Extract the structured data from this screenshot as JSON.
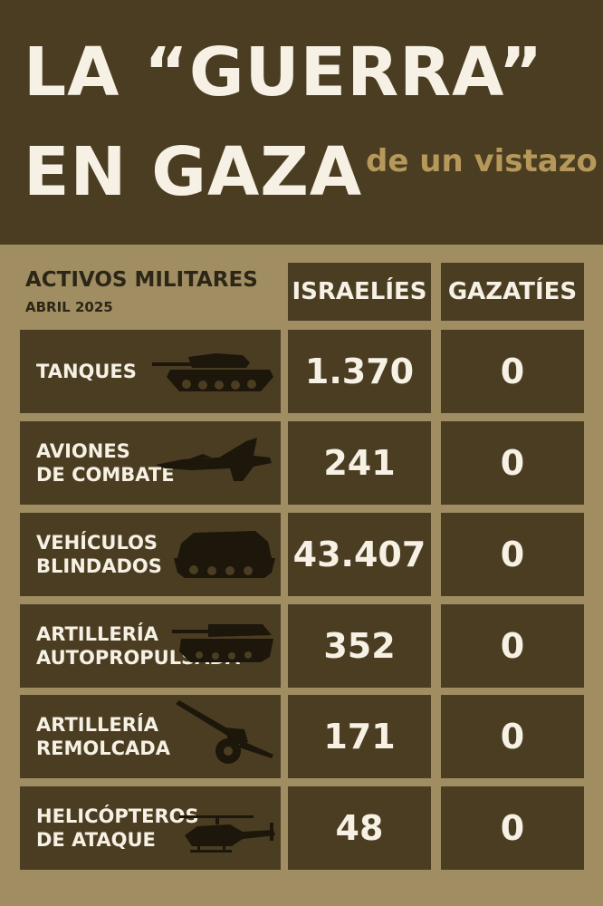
{
  "header": {
    "title_line1": "LA “GUERRA”",
    "title_line2": "EN GAZA",
    "subtitle": "de un vistazo"
  },
  "table": {
    "section_title": "ACTIVOS MILITARES",
    "section_date": "ABRIL 2025",
    "columns": [
      "ISRAELÍES",
      "GAZATÍES"
    ],
    "rows": [
      {
        "label": "TANQUES",
        "israelies": "1.370",
        "gazaties": "0",
        "icon": "tank-icon"
      },
      {
        "label": "AVIONES\nDE COMBATE",
        "israelies": "241",
        "gazaties": "0",
        "icon": "fighter-jet-icon"
      },
      {
        "label": "VEHÍCULOS\nBLINDADOS",
        "israelies": "43.407",
        "gazaties": "0",
        "icon": "armored-vehicle-icon"
      },
      {
        "label": "ARTILLERÍA\nAUTOPROPULSADA",
        "israelies": "352",
        "gazaties": "0",
        "icon": "self-propelled-artillery-icon"
      },
      {
        "label": "ARTILLERÍA\nREMOLCADA",
        "israelies": "171",
        "gazaties": "0",
        "icon": "towed-artillery-icon"
      },
      {
        "label": "HELICÓPTEROS\nDE ATAQUE",
        "israelies": "48",
        "gazaties": "0",
        "icon": "attack-helicopter-icon"
      }
    ]
  },
  "colors": {
    "dark_brown": "#4a3d22",
    "tan_background": "#a08e62",
    "cream_text": "#f6f1e4",
    "gold_accent": "#b6995a"
  }
}
